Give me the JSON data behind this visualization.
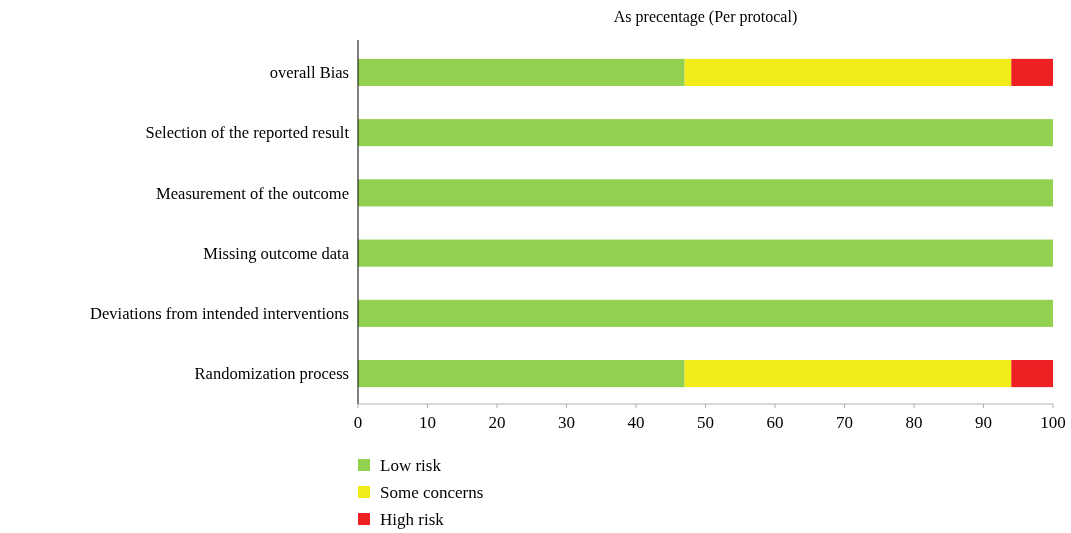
{
  "chart_data": {
    "type": "bar",
    "orientation": "horizontal",
    "stacked": true,
    "title": "As precentage (Per protocal)",
    "categories": [
      "overall Bias",
      "Selection of the reported result",
      "Measurement of the outcome ",
      "Missing outcome data",
      "Deviations from intended interventions",
      "Randomization process"
    ],
    "series": [
      {
        "name": "Low risk",
        "color": "#92d050",
        "values": [
          47,
          100,
          100,
          100,
          100,
          47
        ]
      },
      {
        "name": "Some concerns",
        "color": "#f2ec19",
        "values": [
          47,
          0,
          0,
          0,
          0,
          47
        ]
      },
      {
        "name": "High risk",
        "color": "#ee2024",
        "values": [
          6,
          0,
          0,
          0,
          0,
          6
        ]
      }
    ],
    "xlim": [
      0,
      100
    ],
    "xticks": [
      0,
      10,
      20,
      30,
      40,
      50,
      60,
      70,
      80,
      90,
      100
    ],
    "legend": "bottom left"
  }
}
